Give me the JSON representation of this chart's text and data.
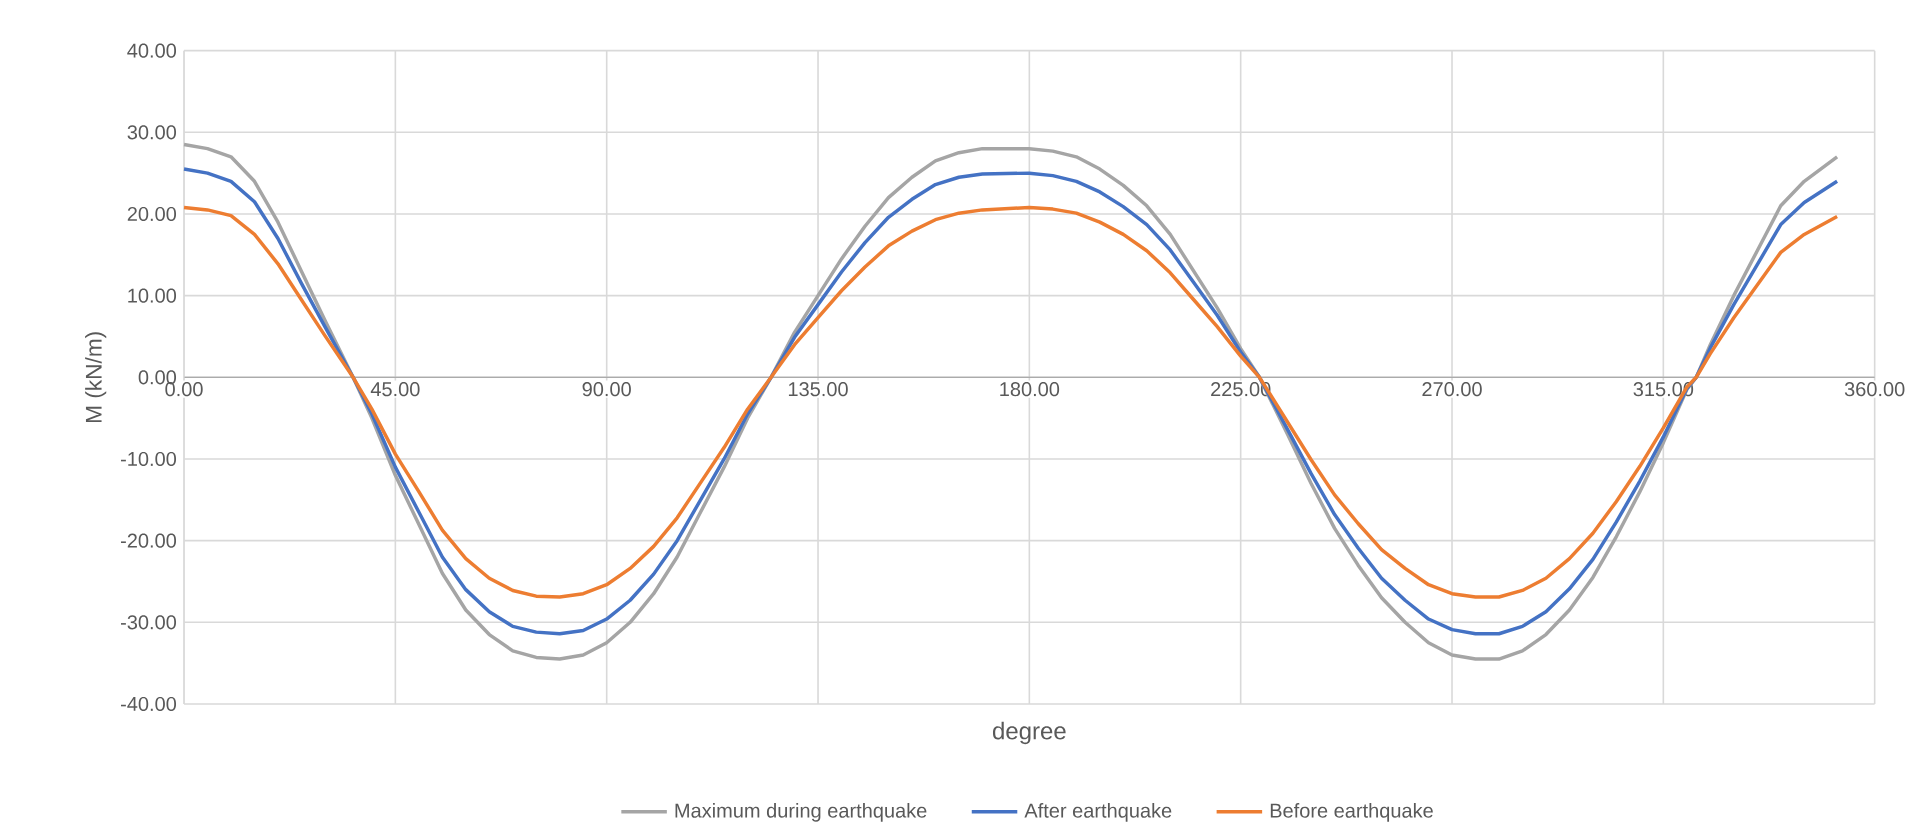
{
  "chart_data": {
    "type": "line",
    "xlabel": "degree",
    "ylabel": "M (kN/m)",
    "x": [
      0,
      5,
      10,
      15,
      20,
      25,
      30,
      36,
      40,
      45,
      50,
      55,
      60,
      65,
      70,
      75,
      80,
      85,
      90,
      95,
      100,
      105,
      110,
      115,
      120,
      125,
      130,
      135,
      140,
      145,
      150,
      155,
      160,
      165,
      170,
      180,
      185,
      190,
      195,
      200,
      205,
      210,
      215,
      220,
      225,
      229,
      235,
      240,
      245,
      250,
      255,
      260,
      265,
      270,
      275,
      280,
      285,
      290,
      295,
      300,
      305,
      310,
      315,
      320,
      322,
      325,
      330,
      335,
      340,
      345,
      352
    ],
    "series": [
      {
        "name": "Maximum during earthquake",
        "color": "#a5a5a5",
        "values": [
          28.5,
          28,
          27,
          24,
          19,
          13,
          7,
          0,
          -5,
          -12,
          -18,
          -24,
          -28.5,
          -31.5,
          -33.5,
          -34.3,
          -34.5,
          -34,
          -32.5,
          -30,
          -26.5,
          -22,
          -16.5,
          -11,
          -5,
          0,
          5.5,
          10,
          14.5,
          18.5,
          22,
          24.5,
          26.5,
          27.5,
          28,
          28,
          27.7,
          27,
          25.5,
          23.5,
          21,
          17.5,
          13,
          8.5,
          3.5,
          0,
          -7,
          -13,
          -18.5,
          -23,
          -27,
          -30,
          -32.5,
          -34,
          -34.5,
          -34.5,
          -33.5,
          -31.5,
          -28.5,
          -24.5,
          -19.5,
          -14,
          -8,
          -1.5,
          0,
          4,
          10,
          15.5,
          21,
          24,
          27
        ]
      },
      {
        "name": "After earthquake",
        "color": "#4472c4",
        "values": [
          25.5,
          25,
          24,
          21.5,
          17,
          11.5,
          6.2,
          0,
          -4.5,
          -11,
          -16.5,
          -22,
          -26,
          -28.7,
          -30.5,
          -31.2,
          -31.4,
          -31,
          -29.6,
          -27.3,
          -24.1,
          -20,
          -15,
          -10,
          -4.5,
          0,
          4.9,
          8.9,
          12.9,
          16.5,
          19.6,
          21.8,
          23.6,
          24.5,
          24.9,
          25,
          24.7,
          24,
          22.7,
          20.9,
          18.7,
          15.6,
          11.6,
          7.6,
          3.1,
          0,
          -6.4,
          -11.8,
          -16.8,
          -20.9,
          -24.6,
          -27.3,
          -29.6,
          -30.9,
          -31.4,
          -31.4,
          -30.5,
          -28.7,
          -25.9,
          -22.3,
          -17.7,
          -12.7,
          -7.3,
          -1.4,
          0,
          3.6,
          8.9,
          13.8,
          18.7,
          21.4,
          24
        ]
      },
      {
        "name": "Before earthquake",
        "color": "#ed7d31",
        "values": [
          20.8,
          20.5,
          19.8,
          17.5,
          13.9,
          9.5,
          5.1,
          0,
          -3.9,
          -9.4,
          -14,
          -18.7,
          -22.2,
          -24.6,
          -26.1,
          -26.8,
          -26.9,
          -26.5,
          -25.4,
          -23.4,
          -20.7,
          -17.2,
          -12.9,
          -8.6,
          -3.9,
          0,
          4,
          7.3,
          10.6,
          13.5,
          16.1,
          17.9,
          19.3,
          20.1,
          20.5,
          20.8,
          20.6,
          20.1,
          19,
          17.5,
          15.5,
          12.8,
          9.5,
          6.2,
          2.6,
          0,
          -5.5,
          -10.1,
          -14.4,
          -17.9,
          -21.1,
          -23.4,
          -25.4,
          -26.5,
          -26.9,
          -26.9,
          -26.1,
          -24.6,
          -22.2,
          -19.1,
          -15.2,
          -10.9,
          -6.2,
          -1.2,
          0,
          2.9,
          7.3,
          11.3,
          15.3,
          17.5,
          19.7
        ]
      }
    ],
    "xlim": [
      0,
      360
    ],
    "xticks": [
      {
        "value": 0,
        "label": "0.00"
      },
      {
        "value": 45,
        "label": "45.00"
      },
      {
        "value": 90,
        "label": "90.00"
      },
      {
        "value": 135,
        "label": "135.00"
      },
      {
        "value": 180,
        "label": "180.00"
      },
      {
        "value": 225,
        "label": "225.00"
      },
      {
        "value": 270,
        "label": "270.00"
      },
      {
        "value": 315,
        "label": "315.00"
      },
      {
        "value": 360,
        "label": "360.00"
      }
    ],
    "ylim": [
      -40,
      40
    ],
    "yticks": [
      {
        "value": -40,
        "label": "-40.00"
      },
      {
        "value": -30,
        "label": "-30.00"
      },
      {
        "value": -20,
        "label": "-20.00"
      },
      {
        "value": -10,
        "label": "-10.00"
      },
      {
        "value": 0,
        "label": "0.00"
      },
      {
        "value": 10,
        "label": "10.00"
      },
      {
        "value": 20,
        "label": "20.00"
      },
      {
        "value": 30,
        "label": "30.00"
      },
      {
        "value": 40,
        "label": "40.00"
      }
    ],
    "grid": true,
    "legend": "bottom",
    "marker": "none",
    "line_style": "solid"
  }
}
